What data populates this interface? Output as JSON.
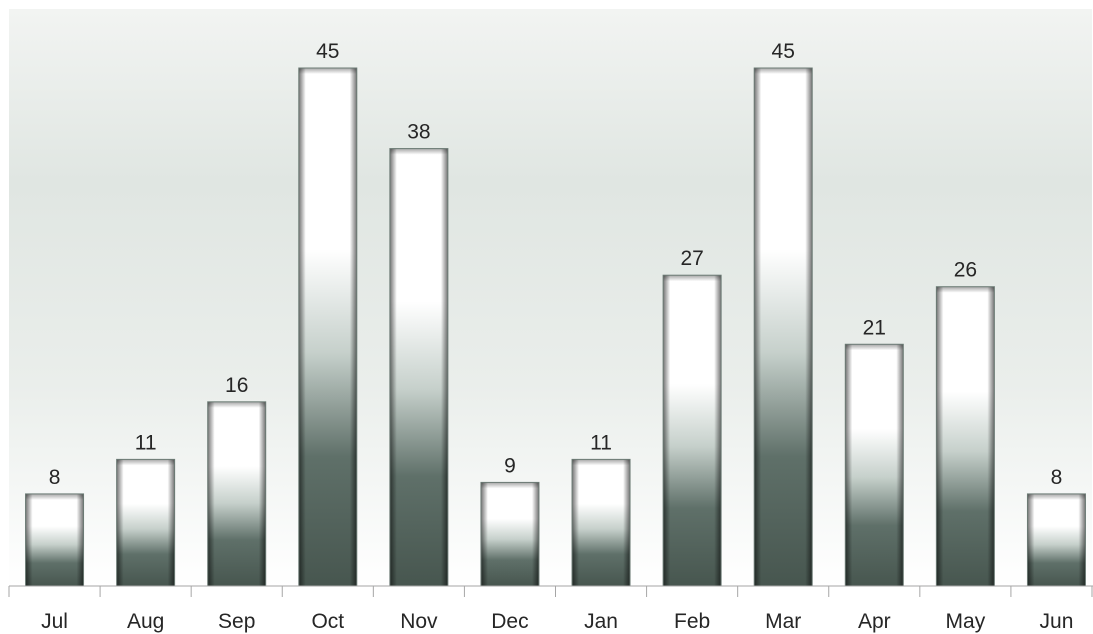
{
  "chart_data": {
    "type": "bar",
    "categories": [
      "Jul",
      "Aug",
      "Sep",
      "Oct",
      "Nov",
      "Dec",
      "Jan",
      "Feb",
      "Mar",
      "Apr",
      "May",
      "Jun"
    ],
    "values": [
      8,
      11,
      16,
      45,
      38,
      9,
      11,
      27,
      45,
      21,
      26,
      8
    ],
    "title": "",
    "xlabel": "",
    "ylabel": "",
    "ylim": [
      0,
      45
    ],
    "grid": false,
    "legend": "none",
    "data_labels": true,
    "colors": {
      "plot_background_top": "#f2f4f2",
      "plot_background_mid": "#dfe5e1",
      "plot_background_bottom": "#ffffff",
      "bar_light": "#ffffff",
      "bar_dark": "#4d5e57",
      "axis": "#a6a6a6",
      "text": "#262626"
    }
  }
}
